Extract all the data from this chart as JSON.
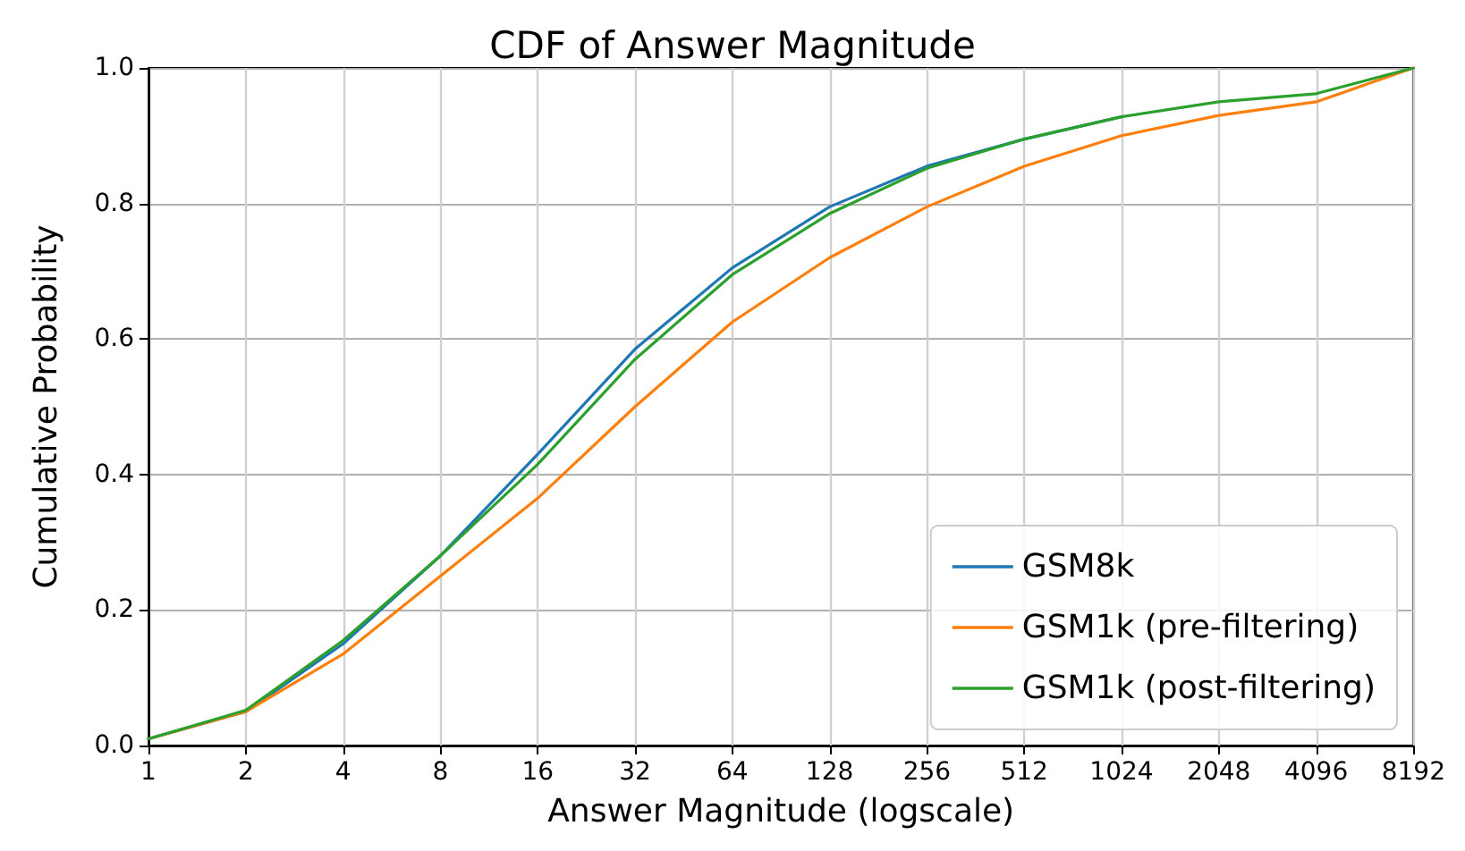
{
  "chart_data": {
    "type": "line",
    "title": "CDF of Answer Magnitude",
    "xlabel": "Answer Magnitude (logscale)",
    "ylabel": "Cumulative Probability",
    "x": [
      1,
      2,
      4,
      8,
      16,
      32,
      64,
      128,
      256,
      512,
      1024,
      2048,
      4096,
      8192
    ],
    "series": [
      {
        "name": "GSM8k",
        "color": "#1f77b4",
        "values": [
          0.01,
          0.05,
          0.15,
          0.28,
          0.43,
          0.585,
          0.705,
          0.795,
          0.855,
          0.895,
          0.928,
          null,
          null,
          null
        ]
      },
      {
        "name": "GSM1k (pre-filtering)",
        "color": "#ff7f0e",
        "values": [
          0.01,
          0.05,
          0.135,
          0.25,
          0.365,
          0.5,
          0.625,
          0.72,
          0.795,
          0.855,
          0.9,
          0.93,
          0.95,
          1.0
        ]
      },
      {
        "name": "GSM1k (post-filtering)",
        "color": "#2ca02c",
        "values": [
          0.01,
          0.052,
          0.155,
          0.28,
          0.415,
          0.57,
          0.695,
          0.785,
          0.852,
          0.895,
          0.928,
          0.95,
          0.962,
          1.0
        ]
      }
    ],
    "xlim": [
      1,
      8192
    ],
    "xticks": [
      1,
      2,
      4,
      8,
      16,
      32,
      64,
      128,
      256,
      512,
      1024,
      2048,
      4096,
      8192
    ],
    "ylim": [
      0,
      1
    ],
    "yticks": [
      {
        "value": 0,
        "label": "0.0"
      },
      {
        "value": 0.2,
        "label": "0.2"
      },
      {
        "value": 0.4,
        "label": "0.4"
      },
      {
        "value": 0.6,
        "label": "0.6"
      },
      {
        "value": 0.8,
        "label": "0.8"
      },
      {
        "value": 1,
        "label": "1.0"
      }
    ],
    "log": "x",
    "grid": true,
    "legend": "bottom right",
    "marker": "none",
    "line_style": "solid"
  }
}
